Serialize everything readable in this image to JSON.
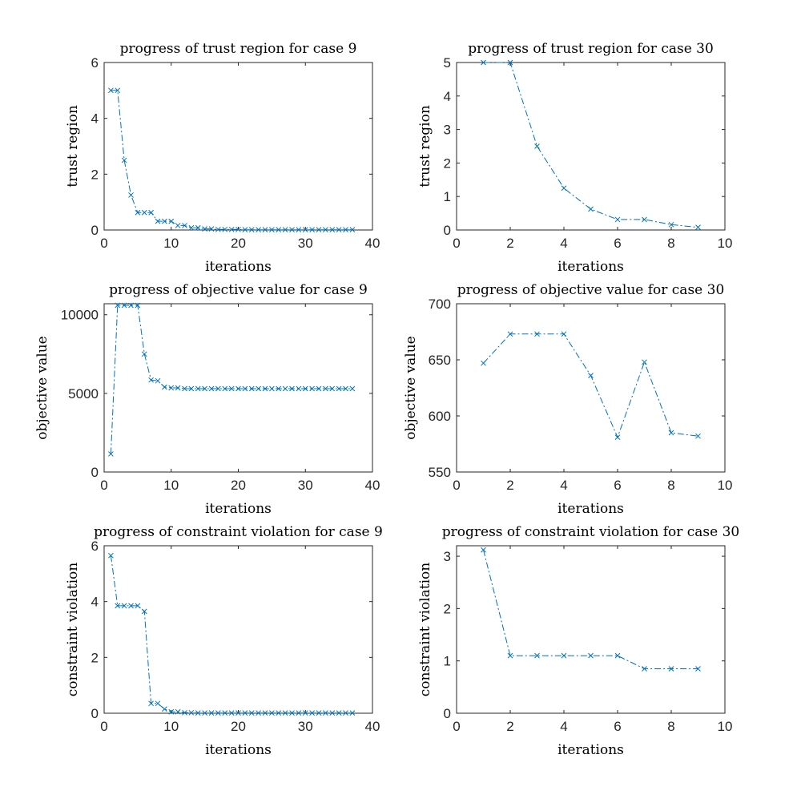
{
  "colors": {
    "series": "#0072BD",
    "axis": "#262626",
    "background": "#ffffff"
  },
  "chart_data": [
    {
      "type": "line",
      "title": "progress of trust region for case 9",
      "xlabel": "iterations",
      "ylabel": "trust region",
      "xlim": [
        0,
        40
      ],
      "ylim": [
        0,
        6
      ],
      "xticks": [
        0,
        10,
        20,
        30,
        40
      ],
      "yticks": [
        0,
        2,
        4,
        6
      ],
      "legend": "none",
      "grid": false,
      "marker": "x",
      "linestyle": "dash-dot",
      "x": [
        1,
        2,
        3,
        4,
        5,
        6,
        7,
        8,
        9,
        10,
        11,
        12,
        13,
        14,
        15,
        16,
        17,
        18,
        19,
        20,
        21,
        22,
        23,
        24,
        25,
        26,
        27,
        28,
        29,
        30,
        31,
        32,
        33,
        34,
        35,
        36,
        37
      ],
      "y": [
        5,
        5,
        2.5,
        1.25,
        0.625,
        0.625,
        0.625,
        0.3125,
        0.3125,
        0.3125,
        0.16,
        0.16,
        0.08,
        0.08,
        0.04,
        0.04,
        0.02,
        0.02,
        0.02,
        0.02,
        0.01,
        0.01,
        0.01,
        0.01,
        0.01,
        0.01,
        0.01,
        0.01,
        0.01,
        0.01,
        0.01,
        0.01,
        0.01,
        0.01,
        0.01,
        0.01,
        0.01
      ]
    },
    {
      "type": "line",
      "title": "progress of trust region for case 30",
      "xlabel": "iterations",
      "ylabel": "trust region",
      "xlim": [
        0,
        10
      ],
      "ylim": [
        0,
        5
      ],
      "xticks": [
        0,
        2,
        4,
        6,
        8,
        10
      ],
      "yticks": [
        0,
        1,
        2,
        3,
        4,
        5
      ],
      "legend": "none",
      "grid": false,
      "marker": "x",
      "linestyle": "dash-dot",
      "x": [
        1,
        2,
        3,
        4,
        5,
        6,
        7,
        8,
        9
      ],
      "y": [
        5,
        5,
        2.5,
        1.25,
        0.625,
        0.3125,
        0.3125,
        0.16,
        0.08
      ]
    },
    {
      "type": "line",
      "title": "progress of objective value for case 9",
      "xlabel": "iterations",
      "ylabel": "objective value",
      "xlim": [
        0,
        40
      ],
      "ylim": [
        0,
        10700
      ],
      "xticks": [
        0,
        10,
        20,
        30,
        40
      ],
      "yticks": [
        0,
        5000,
        10000
      ],
      "legend": "none",
      "grid": false,
      "marker": "x",
      "linestyle": "dash-dot",
      "x": [
        1,
        2,
        3,
        4,
        5,
        6,
        7,
        8,
        9,
        10,
        11,
        12,
        13,
        14,
        15,
        16,
        17,
        18,
        19,
        20,
        21,
        22,
        23,
        24,
        25,
        26,
        27,
        28,
        29,
        30,
        31,
        32,
        33,
        34,
        35,
        36,
        37
      ],
      "y": [
        1150,
        10600,
        10600,
        10600,
        10600,
        7500,
        5850,
        5800,
        5400,
        5350,
        5350,
        5300,
        5300,
        5300,
        5300,
        5300,
        5300,
        5300,
        5300,
        5300,
        5300,
        5300,
        5300,
        5300,
        5300,
        5300,
        5300,
        5300,
        5300,
        5300,
        5300,
        5300,
        5300,
        5300,
        5300,
        5300,
        5300
      ]
    },
    {
      "type": "line",
      "title": "progress of objective value for case 30",
      "xlabel": "iterations",
      "ylabel": "objective value",
      "xlim": [
        0,
        10
      ],
      "ylim": [
        550,
        700
      ],
      "xticks": [
        0,
        2,
        4,
        6,
        8,
        10
      ],
      "yticks": [
        550,
        600,
        650,
        700
      ],
      "legend": "none",
      "grid": false,
      "marker": "x",
      "linestyle": "dash-dot",
      "x": [
        1,
        2,
        3,
        4,
        5,
        6,
        7,
        8,
        9
      ],
      "y": [
        647,
        673,
        673,
        673,
        636,
        581,
        648,
        585,
        582
      ]
    },
    {
      "type": "line",
      "title": "progress of constraint violation for case 9",
      "xlabel": "iterations",
      "ylabel": "constraint violation",
      "xlim": [
        0,
        40
      ],
      "ylim": [
        0,
        6
      ],
      "xticks": [
        0,
        10,
        20,
        30,
        40
      ],
      "yticks": [
        0,
        2,
        4,
        6
      ],
      "legend": "none",
      "grid": false,
      "marker": "x",
      "linestyle": "dash-dot",
      "x": [
        1,
        2,
        3,
        4,
        5,
        6,
        7,
        8,
        9,
        10,
        11,
        12,
        13,
        14,
        15,
        16,
        17,
        18,
        19,
        20,
        21,
        22,
        23,
        24,
        25,
        26,
        27,
        28,
        29,
        30,
        31,
        32,
        33,
        34,
        35,
        36,
        37
      ],
      "y": [
        5.65,
        3.85,
        3.85,
        3.85,
        3.85,
        3.65,
        0.35,
        0.35,
        0.15,
        0.05,
        0.05,
        0.02,
        0.02,
        0.01,
        0.01,
        0.01,
        0.01,
        0.01,
        0.01,
        0.01,
        0.01,
        0.01,
        0.01,
        0.01,
        0.01,
        0.01,
        0.01,
        0.01,
        0.01,
        0.01,
        0.01,
        0.01,
        0.01,
        0.01,
        0.01,
        0.01,
        0.01
      ]
    },
    {
      "type": "line",
      "title": "progress of constraint violation for case 30",
      "xlabel": "iterations",
      "ylabel": "constraint violation",
      "xlim": [
        0,
        10
      ],
      "ylim": [
        0,
        3.2
      ],
      "xticks": [
        0,
        2,
        4,
        6,
        8,
        10
      ],
      "yticks": [
        0,
        1,
        2,
        3
      ],
      "legend": "none",
      "grid": false,
      "marker": "x",
      "linestyle": "dash-dot",
      "x": [
        1,
        2,
        3,
        4,
        5,
        6,
        7,
        8,
        9
      ],
      "y": [
        3.12,
        1.1,
        1.1,
        1.1,
        1.1,
        1.1,
        0.85,
        0.85,
        0.85
      ]
    }
  ]
}
